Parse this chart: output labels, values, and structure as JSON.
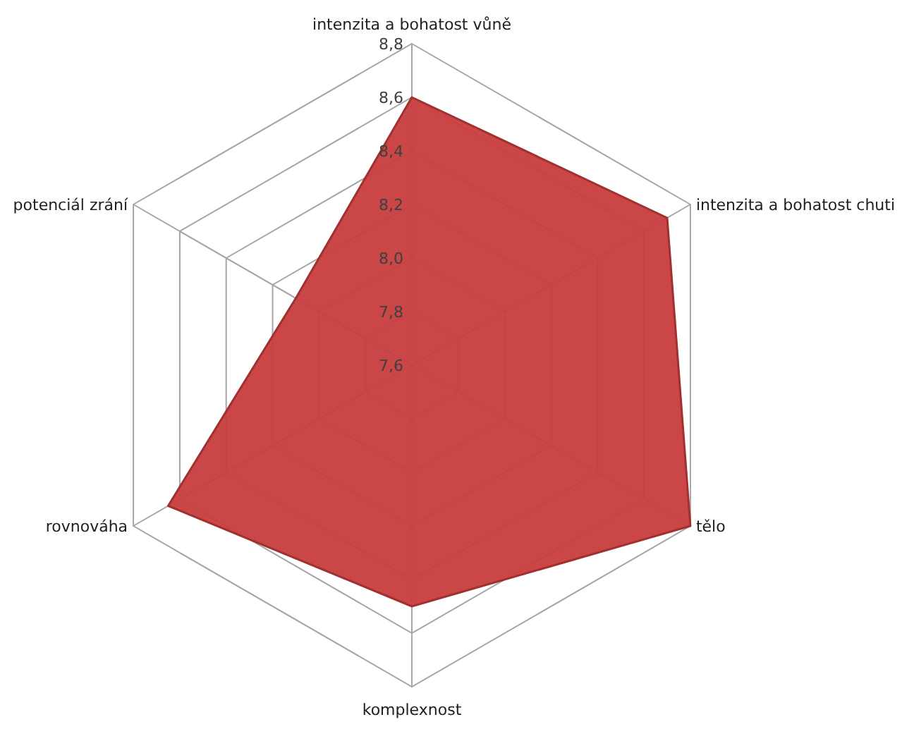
{
  "chart_data": {
    "type": "radar",
    "categories": [
      "intenzita a bohatost vůně",
      "intenzita a bohatost chuti",
      "tělo",
      "komplexnost",
      "rovnováha",
      "potenciál zrání"
    ],
    "series": [
      {
        "color": "#c83c3c",
        "values": [
          8.6,
          8.7,
          8.8,
          8.5,
          8.65,
          8.1
        ]
      }
    ],
    "ylim": [
      7.6,
      8.8
    ],
    "yticks": [
      {
        "value": 7.6,
        "label": "7,6"
      },
      {
        "value": 7.8,
        "label": "7,8"
      },
      {
        "value": 8.0,
        "label": "8,0"
      },
      {
        "value": 8.2,
        "label": "8,2"
      },
      {
        "value": 8.4,
        "label": "8,4"
      },
      {
        "value": 8.6,
        "label": "8,6"
      },
      {
        "value": 8.8,
        "label": "8,8"
      }
    ],
    "grid": true
  }
}
